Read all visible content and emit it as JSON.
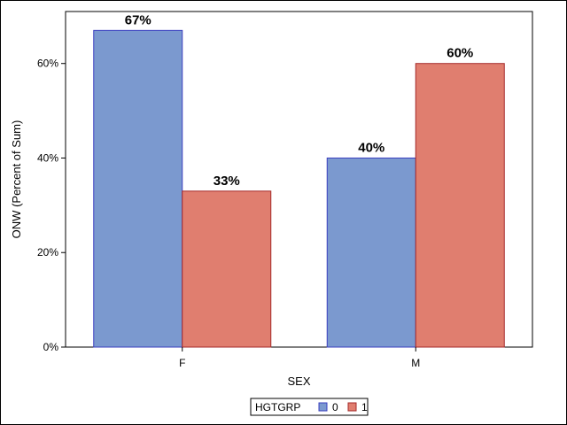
{
  "chart_data": {
    "type": "bar",
    "categories": [
      "F",
      "M"
    ],
    "series": [
      {
        "name": "0",
        "values": [
          67,
          40
        ],
        "labels": [
          "67%",
          "40%"
        ],
        "color": "#7b99cf",
        "stroke": "#3a3fbf"
      },
      {
        "name": "1",
        "values": [
          33,
          60
        ],
        "labels": [
          "33%",
          "60%"
        ],
        "color": "#e07e6f",
        "stroke": "#a52a2a"
      }
    ],
    "xlabel": "SEX",
    "ylabel": "ONW (Percent of Sum)",
    "ylim": [
      0,
      71
    ],
    "yticks": [
      0,
      20,
      40,
      60
    ],
    "ytick_labels": [
      "0%",
      "20%",
      "40%",
      "60%"
    ],
    "grid": false,
    "legend": {
      "title": "HGTGRP",
      "placement": "bottom-center"
    }
  }
}
